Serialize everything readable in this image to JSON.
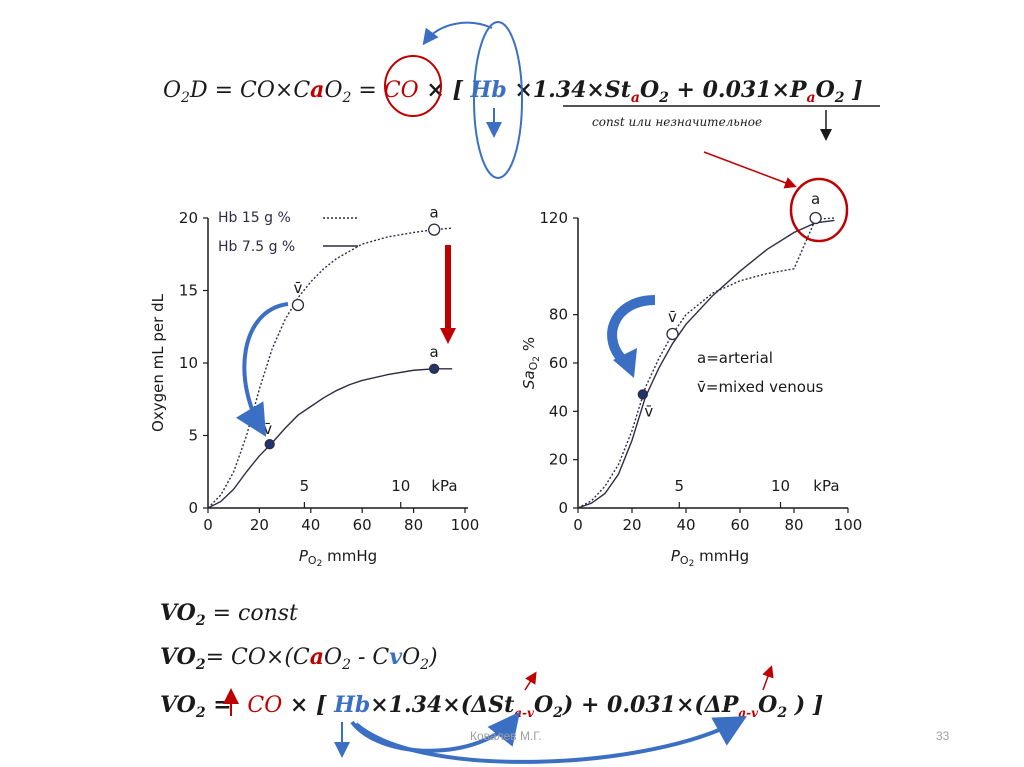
{
  "colors": {
    "accent_red": "#c00000",
    "accent_blue": "#3b6fc4",
    "text": "#1a1a1a",
    "curve": "#2d2d44",
    "point_fill": "#22336e"
  },
  "top_formula": {
    "lhs_o2d": "O",
    "lhs_sub2": "2",
    "lhs_d": "D = CO×C",
    "lhs_a": "a",
    "lhs_o": "O",
    "lhs_o_sub": "2",
    "lhs_eq": " = ",
    "co": "CO",
    "times_bracket": " × [ ",
    "hb": "Hb",
    "mult": " ×1.34×St",
    "sat_a": "a",
    "sat_o": "O",
    "sat_sub": "2",
    "plus": " + 0.031×P",
    "p_a": "a",
    "p_o": "O",
    "p_sub": "2",
    "close": " ]",
    "note": "const или незначительное"
  },
  "chart_data": [
    {
      "type": "line",
      "xlabel": "P",
      "xlabel_sub": "O",
      "xlabel_sub2": "2",
      "xlabel_unit": " mmHg",
      "ylabel": "Oxygen mL per dL",
      "xlim": [
        0,
        100
      ],
      "ylim": [
        0,
        20
      ],
      "x_ticks": [
        "0",
        "20",
        "40",
        "60",
        "80",
        "100"
      ],
      "x_tick_values": [
        0,
        20,
        40,
        60,
        80,
        100
      ],
      "y_ticks": [
        "0",
        "5",
        "10",
        "15",
        "20"
      ],
      "y_tick_values": [
        0,
        5,
        10,
        15,
        20
      ],
      "kpa_ticks": [
        "5",
        "10",
        "kPa"
      ],
      "kpa_tick_values": [
        37.5,
        75,
        92
      ],
      "legend": [
        {
          "name": "Hb 15 g %",
          "style": "dotted"
        },
        {
          "name": "Hb 7.5 g %",
          "style": "solid"
        }
      ],
      "series": [
        {
          "name": "Hb 15 g %",
          "style": "dotted",
          "x": [
            0,
            5,
            10,
            15,
            20,
            25,
            30,
            35,
            40,
            45,
            50,
            55,
            60,
            70,
            80,
            88,
            95
          ],
          "y": [
            0,
            0.9,
            2.5,
            5.0,
            8.2,
            11.0,
            13.0,
            14.5,
            15.6,
            16.5,
            17.2,
            17.7,
            18.2,
            18.7,
            19.0,
            19.2,
            19.3
          ]
        },
        {
          "name": "Hb 7.5 g %",
          "style": "solid",
          "x": [
            0,
            5,
            10,
            15,
            20,
            25,
            30,
            35,
            40,
            45,
            50,
            55,
            60,
            70,
            80,
            88,
            95
          ],
          "y": [
            0,
            0.45,
            1.3,
            2.5,
            3.6,
            4.5,
            5.5,
            6.4,
            7.0,
            7.6,
            8.1,
            8.5,
            8.8,
            9.2,
            9.5,
            9.6,
            9.6
          ]
        }
      ],
      "points": [
        {
          "label": "a",
          "x": 88,
          "y": 19.2,
          "filled": false
        },
        {
          "label": "v̄",
          "x": 35,
          "y": 14.0,
          "filled": false
        },
        {
          "label": "a",
          "x": 88,
          "y": 9.6,
          "filled": true
        },
        {
          "label": "v̄",
          "x": 24,
          "y": 4.4,
          "filled": true
        }
      ]
    },
    {
      "type": "line",
      "xlabel": "P",
      "xlabel_sub": "O",
      "xlabel_sub2": "2",
      "xlabel_unit": " mmHg",
      "ylabel": "Sa",
      "ylabel_sub": "O",
      "ylabel_sub2": "2",
      "ylabel_unit": " %",
      "xlim": [
        0,
        100
      ],
      "ylim": [
        0,
        120
      ],
      "x_ticks": [
        "0",
        "20",
        "40",
        "60",
        "80",
        "100"
      ],
      "x_tick_values": [
        0,
        20,
        40,
        60,
        80,
        100
      ],
      "y_ticks": [
        "0",
        "20",
        "40",
        "60",
        "80",
        "120"
      ],
      "y_tick_values": [
        0,
        20,
        40,
        60,
        80,
        120
      ],
      "kpa_ticks": [
        "5",
        "10",
        "kPa"
      ],
      "kpa_tick_values": [
        37.5,
        75,
        92
      ],
      "legend_notes": [
        "a=arterial",
        "v̄=mixed venous"
      ],
      "series": [
        {
          "name": "Hb 15 g %",
          "style": "dotted",
          "x": [
            0,
            5,
            10,
            15,
            20,
            25,
            30,
            35,
            40,
            50,
            60,
            70,
            80,
            88,
            95
          ],
          "y": [
            0,
            3,
            9,
            18,
            32,
            50,
            62,
            72,
            80,
            89,
            94,
            97,
            99,
            119.5,
            120
          ]
        },
        {
          "name": "Hb 7.5 g %",
          "style": "solid",
          "x": [
            0,
            5,
            10,
            15,
            20,
            25,
            30,
            35,
            40,
            50,
            60,
            70,
            80,
            88,
            95
          ],
          "y": [
            0,
            2,
            6,
            14,
            28,
            46,
            58,
            68,
            76,
            88,
            98,
            107,
            114,
            118,
            119
          ]
        }
      ],
      "points": [
        {
          "label": "a",
          "x": 88,
          "y": 120,
          "filled": false
        },
        {
          "label": "v̄",
          "x": 35,
          "y": 72,
          "filled": false
        },
        {
          "label": "v̄",
          "x": 24,
          "y": 47,
          "filled": true
        }
      ]
    }
  ],
  "bottom_formulas": {
    "line1_vo": "VO",
    "line1_sub": "2",
    "line1_rest": " = const",
    "line2_vo": "VO",
    "line2_sub": "2",
    "line2_rest1": "= CO×(C",
    "line2_a": "a",
    "line2_rest2": "O",
    "line2_sub2": "2",
    "line2_rest3": " - C",
    "line2_v": "v",
    "line2_rest4": "O",
    "line2_sub3": "2",
    "line2_rest5": ")",
    "line3_vo": "VO",
    "line3_sub": "2",
    "line3_eq": " = ",
    "line3_co": "CO",
    "line3_times": " × [ ",
    "line3_hb": "Hb",
    "line3_mid": "×1.34×(ΔSt",
    "line3_sub_av": "a-v",
    "line3_o1": "O",
    "line3_o1sub": "2",
    "line3_plus": ") + 0.031×(ΔP",
    "line3_sub_av2": "a-v",
    "line3_o2": "O",
    "line3_o2sub": "2",
    "line3_close": " ) ]"
  },
  "footer": {
    "author": "Ковалев М.Г.",
    "page": "33"
  }
}
